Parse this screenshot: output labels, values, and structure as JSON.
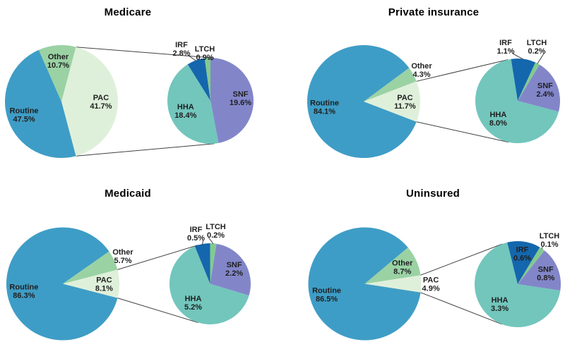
{
  "unit": "%",
  "colors": {
    "routine": "#3E9DC6",
    "pac": "#DFF0DA",
    "other": "#9AD2A4",
    "snf": "#8286C9",
    "hha": "#72C6BC",
    "irf": "#1467AD",
    "ltch": "#82CA90",
    "connector_line": "#404040",
    "label_text": "#1F1F1F"
  },
  "chart_data": [
    {
      "type": "pie",
      "variant": "pie-of-pie",
      "title": "Medicare",
      "primary": {
        "slices": [
          {
            "label": "Routine",
            "value": 47.5
          },
          {
            "label": "PAC",
            "value": 41.7
          },
          {
            "label": "Other",
            "value": 10.7
          }
        ]
      },
      "secondary_of": "PAC",
      "secondary": {
        "slices": [
          {
            "label": "SNF",
            "value": 19.6
          },
          {
            "label": "HHA",
            "value": 18.4
          },
          {
            "label": "IRF",
            "value": 2.8
          },
          {
            "label": "LTCH",
            "value": 0.9
          }
        ]
      }
    },
    {
      "type": "pie",
      "variant": "pie-of-pie",
      "title": "Private insurance",
      "primary": {
        "slices": [
          {
            "label": "Routine",
            "value": 84.1
          },
          {
            "label": "PAC",
            "value": 11.7
          },
          {
            "label": "Other",
            "value": 4.3
          }
        ]
      },
      "secondary_of": "PAC",
      "secondary": {
        "slices": [
          {
            "label": "SNF",
            "value": 2.4
          },
          {
            "label": "HHA",
            "value": 8.0
          },
          {
            "label": "IRF",
            "value": 1.1
          },
          {
            "label": "LTCH",
            "value": 0.2
          }
        ]
      }
    },
    {
      "type": "pie",
      "variant": "pie-of-pie",
      "title": "Medicaid",
      "primary": {
        "slices": [
          {
            "label": "Routine",
            "value": 86.3
          },
          {
            "label": "PAC",
            "value": 8.1
          },
          {
            "label": "Other",
            "value": 5.7
          }
        ]
      },
      "secondary_of": "PAC",
      "secondary": {
        "slices": [
          {
            "label": "SNF",
            "value": 2.2
          },
          {
            "label": "HHA",
            "value": 5.2
          },
          {
            "label": "IRF",
            "value": 0.5
          },
          {
            "label": "LTCH",
            "value": 0.2
          }
        ]
      }
    },
    {
      "type": "pie",
      "variant": "pie-of-pie",
      "title": "Uninsured",
      "primary": {
        "slices": [
          {
            "label": "Routine",
            "value": 86.5
          },
          {
            "label": "PAC",
            "value": 4.9
          },
          {
            "label": "Other",
            "value": 8.7
          }
        ]
      },
      "secondary_of": "PAC",
      "secondary": {
        "slices": [
          {
            "label": "SNF",
            "value": 0.8
          },
          {
            "label": "HHA",
            "value": 3.3
          },
          {
            "label": "IRF",
            "value": 0.6
          },
          {
            "label": "LTCH",
            "value": 0.1
          }
        ]
      }
    }
  ]
}
